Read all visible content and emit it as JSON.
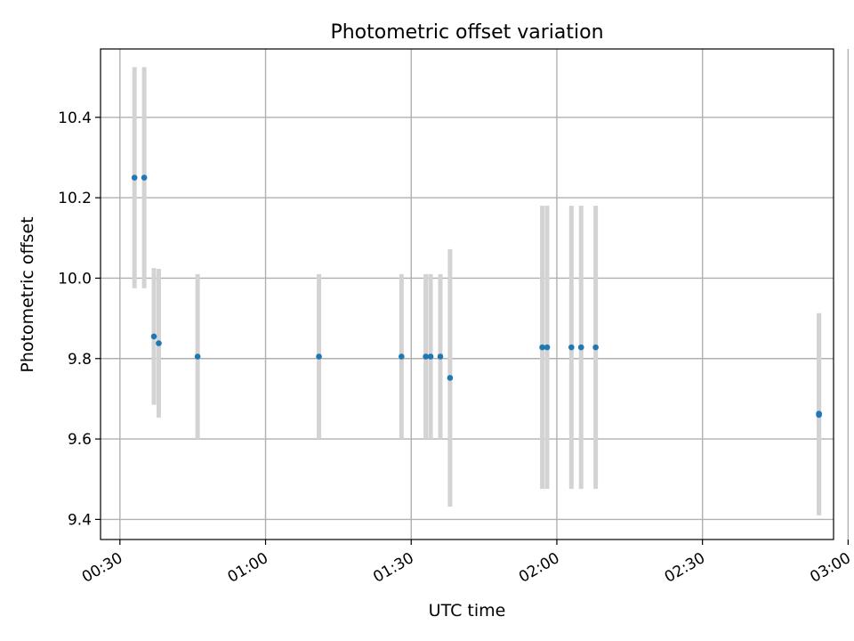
{
  "chart_data": {
    "type": "scatter",
    "title": "Photometric offset variation",
    "xlabel": "UTC time",
    "ylabel": "Photometric offset",
    "x_ticks": [
      "00:30",
      "01:00",
      "01:30",
      "02:00",
      "02:30",
      "03:00"
    ],
    "y_ticks": [
      "9.4",
      "9.6",
      "9.8",
      "10.0",
      "10.2",
      "10.4"
    ],
    "xlim": [
      "00:26",
      "02:57"
    ],
    "ylim": [
      9.35,
      10.57
    ],
    "grid": true,
    "colors": {
      "points": "#1f77b4",
      "errorbars": "#d3d3d3",
      "grid": "#b0b0b0"
    },
    "points": [
      {
        "x": "00:33",
        "y": 10.25,
        "yerr": 0.275
      },
      {
        "x": "00:35",
        "y": 10.25,
        "yerr": 0.275
      },
      {
        "x": "00:37",
        "y": 9.855,
        "yerr": 0.17
      },
      {
        "x": "00:38",
        "y": 9.838,
        "yerr": 0.185
      },
      {
        "x": "00:46",
        "y": 9.805,
        "yerr": 0.205
      },
      {
        "x": "01:11",
        "y": 9.805,
        "yerr": 0.205
      },
      {
        "x": "01:28",
        "y": 9.805,
        "yerr": 0.205
      },
      {
        "x": "01:33",
        "y": 9.805,
        "yerr": 0.205
      },
      {
        "x": "01:34",
        "y": 9.805,
        "yerr": 0.205
      },
      {
        "x": "01:36",
        "y": 9.805,
        "yerr": 0.205
      },
      {
        "x": "01:38",
        "y": 9.752,
        "yerr": 0.32
      },
      {
        "x": "01:57",
        "y": 9.828,
        "yerr": 0.352
      },
      {
        "x": "01:58",
        "y": 9.828,
        "yerr": 0.352
      },
      {
        "x": "02:03",
        "y": 9.828,
        "yerr": 0.352
      },
      {
        "x": "02:05",
        "y": 9.828,
        "yerr": 0.352
      },
      {
        "x": "02:08",
        "y": 9.828,
        "yerr": 0.352
      },
      {
        "x": "02:54",
        "y": 9.66,
        "yerr": 0.25
      },
      {
        "x": "02:54",
        "y": 9.663,
        "yerr": 0.25
      }
    ]
  }
}
